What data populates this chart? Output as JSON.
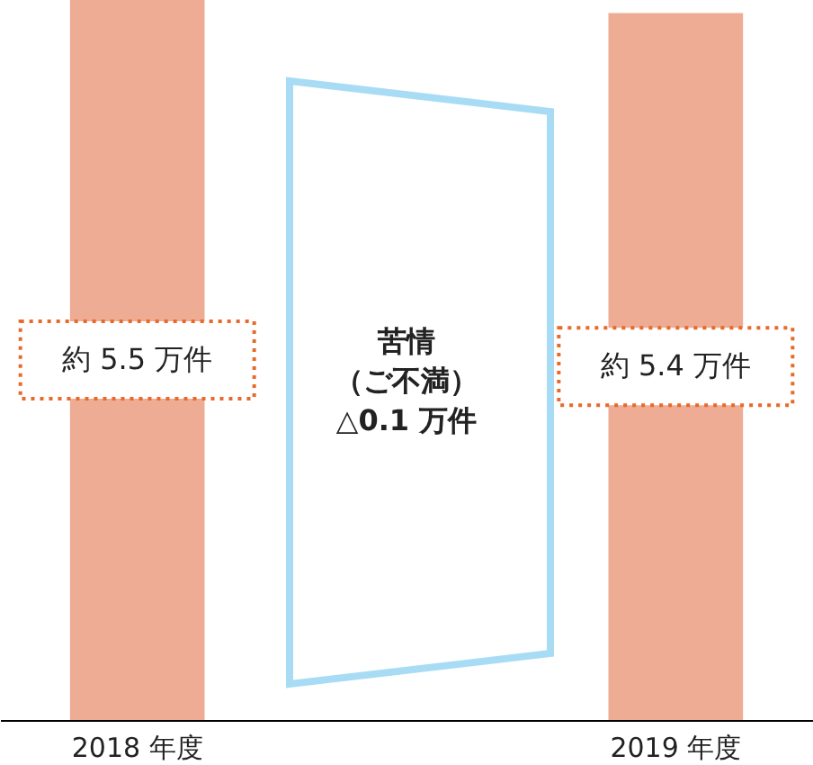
{
  "chart_data": {
    "type": "bar",
    "categories": [
      "2018 年度",
      "2019 年度"
    ],
    "values": [
      5.5,
      5.4
    ],
    "color": "#edac93",
    "value_labels": [
      "約 5.5 万件",
      "約 5.4 万件"
    ],
    "ylim": [
      0,
      5.5
    ],
    "annotations": [
      "苦情",
      "（ご不満）",
      "△0.1 万件"
    ]
  }
}
